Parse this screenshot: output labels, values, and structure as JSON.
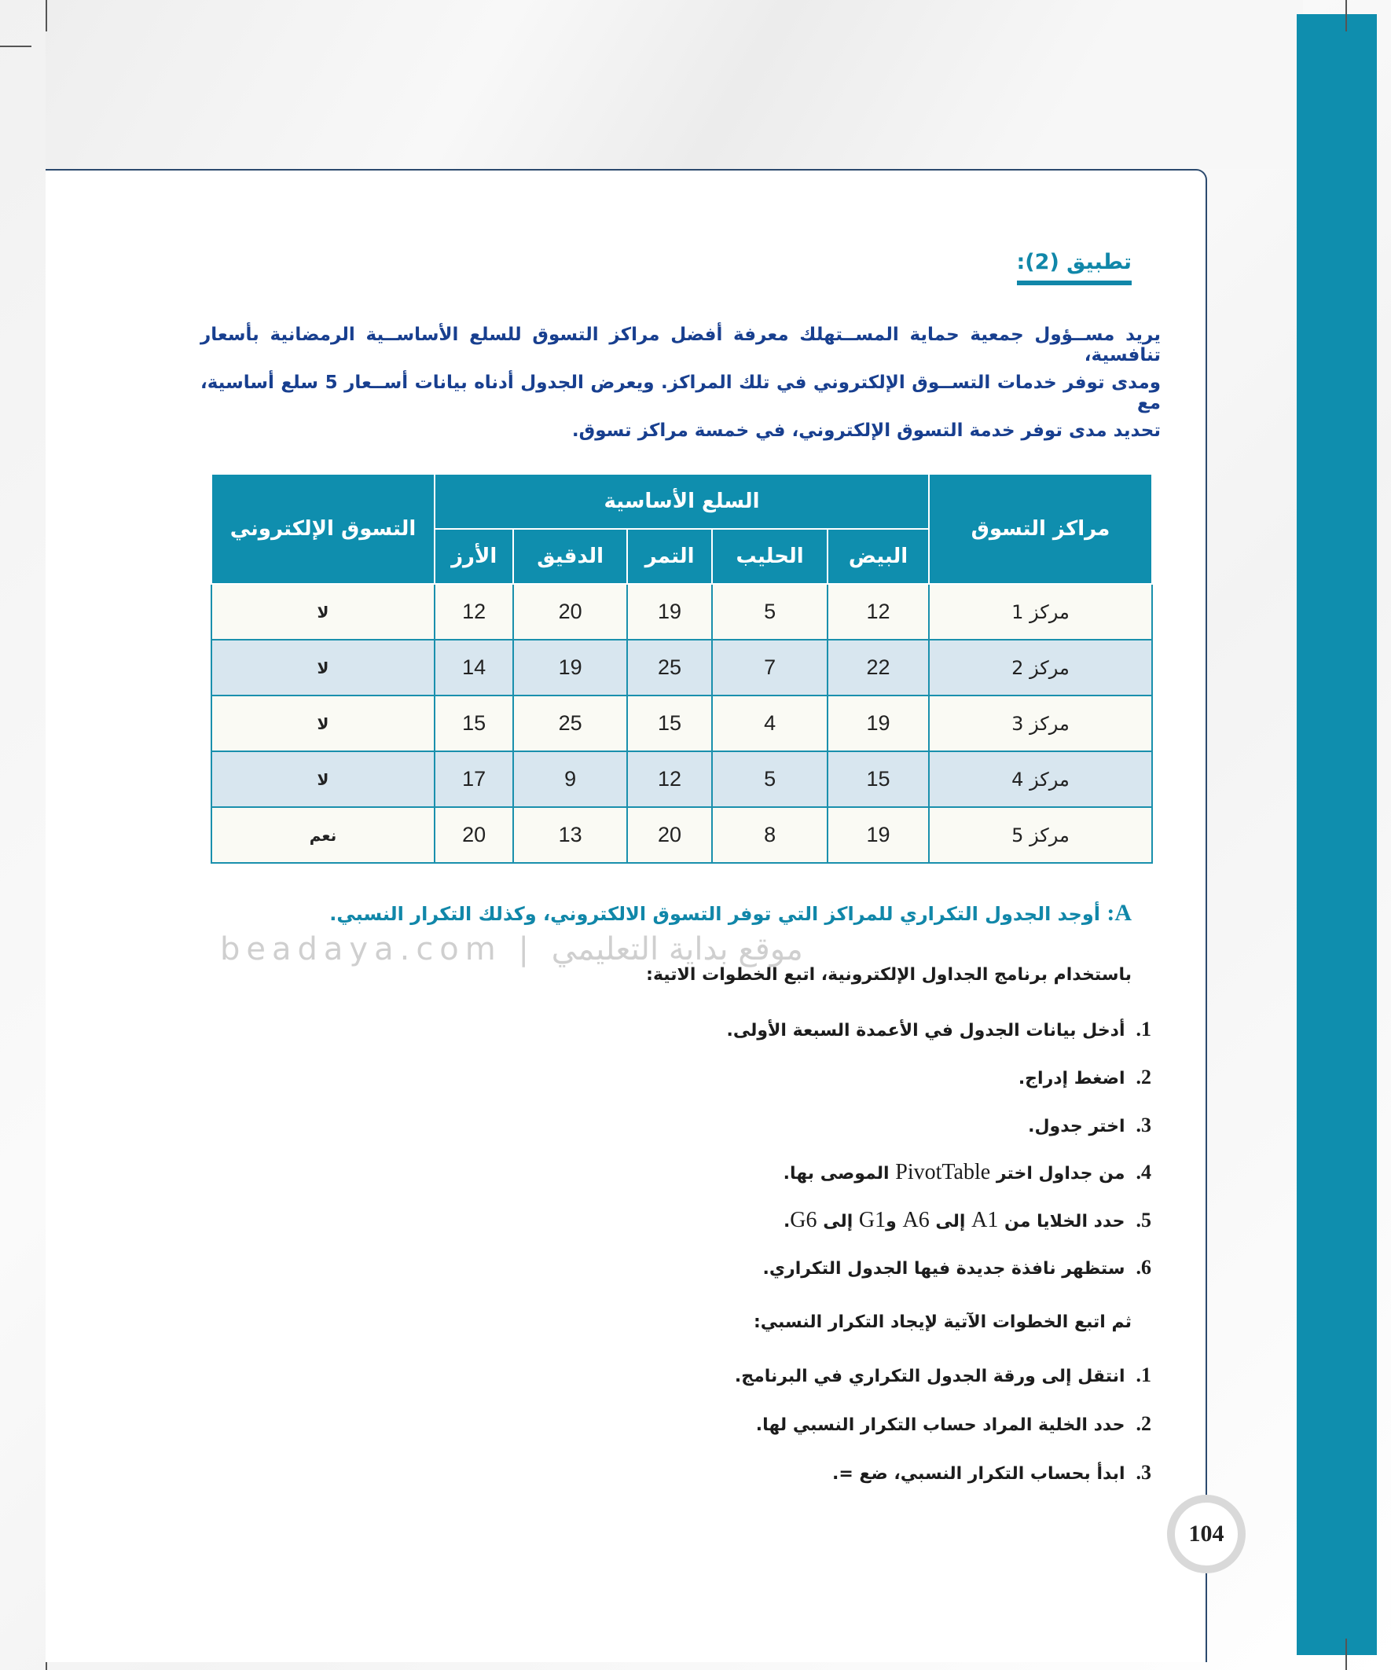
{
  "title": "تطبيق (2):",
  "paragraph": [
    "يريد مســؤول جمعية حماية المســتهلك معرفة أفضل مراكز التسوق للسلع الأساســية الرمضانية بأسعار تنافسية،",
    "ومدى توفر خدمات التســوق الإلكتروني في تلك المراكز. ويعرض الجدول أدناه بيانات أســعار 5 سلع أساسية، مع",
    "تحديد مدى توفر خدمة التسوق الإلكتروني، في خمسة مراكز تسوق."
  ],
  "table": {
    "headers": {
      "center": "مراكز التسوق",
      "goods": "السلع الأساسية",
      "eshop": "التسوق الإلكتروني",
      "items": [
        "البيض",
        "الحليب",
        "التمر",
        "الدقيق",
        "الأرز"
      ]
    },
    "rows": [
      {
        "center": "مركز 1",
        "values": [
          "12",
          "5",
          "19",
          "20",
          "12"
        ],
        "eshop": "لا"
      },
      {
        "center": "مركز 2",
        "values": [
          "22",
          "7",
          "25",
          "19",
          "14"
        ],
        "eshop": "لا"
      },
      {
        "center": "مركز 3",
        "values": [
          "19",
          "4",
          "15",
          "25",
          "15"
        ],
        "eshop": "لا"
      },
      {
        "center": "مركز 4",
        "values": [
          "15",
          "5",
          "12",
          "9",
          "17"
        ],
        "eshop": "لا"
      },
      {
        "center": "مركز 5",
        "values": [
          "19",
          "8",
          "20",
          "13",
          "20"
        ],
        "eshop": "نعم"
      }
    ]
  },
  "question": {
    "label": "A:",
    "text": "أوجد الجدول التكراري للمراكز التي توفر التسوق الالكتروني، وكذلك التكرار النسبي."
  },
  "intro": "باستخدام برنامج الجداول الإلكترونية، اتبع الخطوات الاتية:",
  "steps": [
    {
      "n": "1.",
      "text": "أدخل بيانات الجدول في الأعمدة السبعة الأولى."
    },
    {
      "n": "2.",
      "text": "اضغط إدراج."
    },
    {
      "n": "3.",
      "text": "اختر جدول."
    },
    {
      "n": "4.",
      "pre": "من جداول اختر ",
      "latin": "PivotTable",
      "post": " الموصى بها."
    },
    {
      "n": "5.",
      "pre": "حدد الخلايا من ",
      "latin": "A1",
      "mid": " إلى ",
      "latin2": "A6",
      "mid2": " و",
      "latin3": "G1",
      "mid3": " إلى ",
      "latin4": "G6",
      "post": "."
    },
    {
      "n": "6.",
      "text": "ستظهر نافذة جديدة فيها الجدول التكراري."
    }
  ],
  "intro2": "ثم اتبع الخطوات الآتية لإيجاد التكرار النسبي:",
  "steps2": [
    {
      "n": "1.",
      "text": "انتقل إلى ورقة الجدول التكراري في البرنامج."
    },
    {
      "n": "2.",
      "text": "حدد الخلية المراد حساب التكرار النسبي لها."
    },
    {
      "n": "3.",
      "text": "ابدأ بحساب التكرار النسبي، ضع =."
    }
  ],
  "watermark": "beadaya.com | موقع بداية التعليمي",
  "page_number": "104",
  "colors": {
    "accent": "#0f8eae",
    "body_text": "#183f8f",
    "row_alt": "#d8e6ef"
  }
}
